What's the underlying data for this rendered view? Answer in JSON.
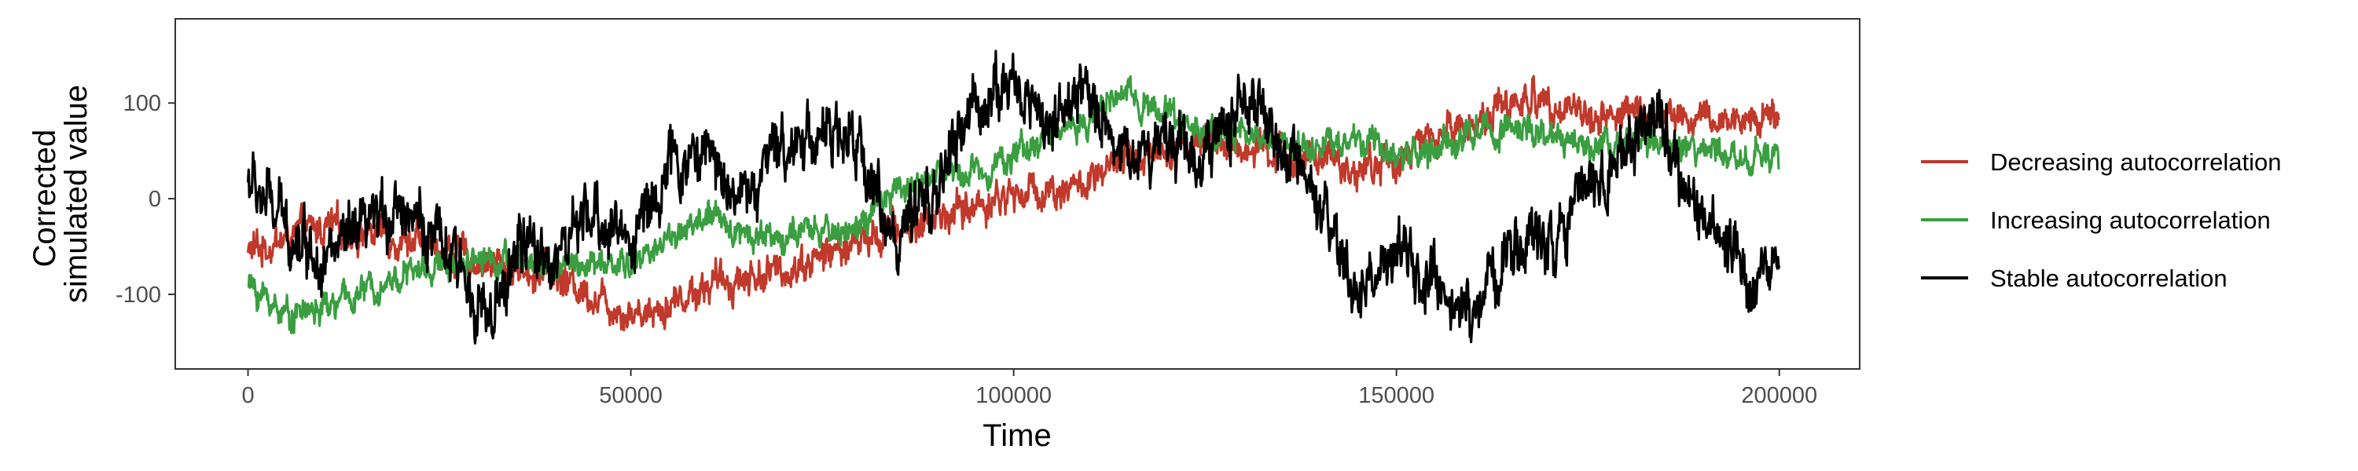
{
  "chart_data": {
    "type": "line",
    "title": "",
    "xlabel": "Time",
    "ylabel_lines": [
      "Corrected",
      "simulated value"
    ],
    "xlim": [
      -9500,
      210500
    ],
    "ylim": [
      -178,
      188
    ],
    "x_ticks": [
      0,
      50000,
      100000,
      150000,
      200000
    ],
    "x_tick_labels": [
      "0",
      "50000",
      "100000",
      "150000",
      "200000"
    ],
    "y_ticks": [
      -100,
      0,
      100
    ],
    "y_tick_labels": [
      "-100",
      "0",
      "100"
    ],
    "grid": false,
    "legend_position": "right",
    "series": [
      {
        "name": "Decreasing autocorrelation",
        "color": "#c0392b",
        "x": [
          0,
          10000,
          20000,
          30000,
          40000,
          45000,
          50000,
          55000,
          60000,
          70000,
          80000,
          90000,
          100000,
          110000,
          115000,
          120000,
          125000,
          130000,
          135000,
          140000,
          145000,
          150000,
          155000,
          160000,
          165000,
          170000,
          175000,
          180000,
          185000,
          190000,
          195000,
          200000
        ],
        "y": [
          -55,
          -30,
          -40,
          -65,
          -80,
          -100,
          -120,
          -110,
          -90,
          -75,
          -45,
          -20,
          5,
          15,
          40,
          55,
          60,
          50,
          45,
          40,
          30,
          40,
          65,
          80,
          100,
          105,
          85,
          90,
          85,
          80,
          82,
          90
        ],
        "noise": 22
      },
      {
        "name": "Increasing autocorrelation",
        "color": "#3a9e40",
        "x": [
          0,
          5000,
          10000,
          20000,
          30000,
          40000,
          50000,
          55000,
          60000,
          65000,
          70000,
          80000,
          85000,
          90000,
          95000,
          100000,
          105000,
          110000,
          115000,
          120000,
          125000,
          130000,
          135000,
          140000,
          145000,
          150000,
          155000,
          160000,
          165000,
          170000,
          175000,
          180000,
          185000,
          190000,
          195000,
          200000
        ],
        "y": [
          -90,
          -120,
          -115,
          -80,
          -60,
          -70,
          -70,
          -40,
          -20,
          -35,
          -40,
          -30,
          10,
          25,
          30,
          45,
          70,
          85,
          110,
          90,
          70,
          65,
          60,
          55,
          60,
          45,
          50,
          70,
          75,
          60,
          55,
          65,
          50,
          50,
          45,
          40
        ],
        "noise": 18
      },
      {
        "name": "Stable autocorrelation",
        "color": "#000000",
        "x": [
          0,
          5000,
          10000,
          15000,
          20000,
          25000,
          30000,
          32000,
          35000,
          40000,
          45000,
          50000,
          55000,
          60000,
          65000,
          70000,
          75000,
          80000,
          85000,
          90000,
          95000,
          100000,
          105000,
          110000,
          115000,
          120000,
          125000,
          130000,
          135000,
          140000,
          145000,
          150000,
          155000,
          160000,
          165000,
          170000,
          175000,
          180000,
          183000,
          185000,
          190000,
          195000,
          200000
        ],
        "y": [
          20,
          -30,
          -60,
          -40,
          0,
          -50,
          -100,
          -140,
          -50,
          -60,
          -20,
          -40,
          30,
          50,
          0,
          60,
          70,
          50,
          -50,
          10,
          100,
          120,
          80,
          110,
          40,
          70,
          40,
          110,
          50,
          -20,
          -100,
          -60,
          -100,
          -120,
          -50,
          -40,
          20,
          40,
          100,
          60,
          -30,
          -70,
          -70
        ],
        "noise": 38
      }
    ]
  }
}
